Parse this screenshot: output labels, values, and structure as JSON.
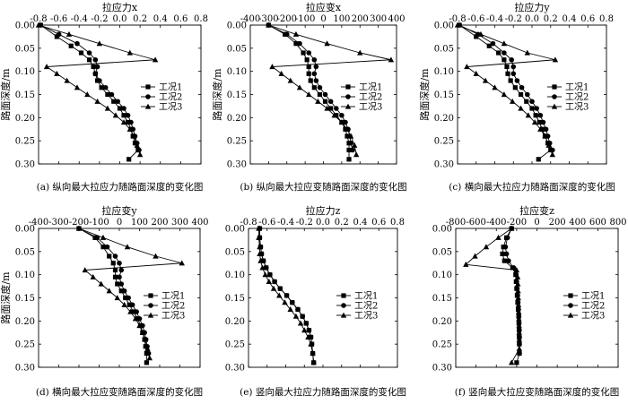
{
  "legend_labels": [
    "工况1",
    "工况2",
    "工况3"
  ],
  "chart_data": [
    {
      "type": "line",
      "title": "拉应力x",
      "xlabel": "拉应力x",
      "ylabel": "路面深度/m",
      "caption": "(a) 纵向最大拉应力随路面深度的变化图",
      "xlim": [
        -0.8,
        0.8
      ],
      "ylim": [
        0,
        0.3
      ],
      "xticks": [
        "-0.8",
        "-0.6",
        "-0.4",
        "-0.2",
        "0.0",
        "0.2",
        "0.4",
        "0.6",
        "0.8"
      ],
      "xtick_values": [
        -0.8,
        -0.6,
        -0.4,
        -0.2,
        0.0,
        0.2,
        0.4,
        0.6,
        0.8
      ],
      "yticks": [
        "0.00",
        "0.05",
        "0.10",
        "0.15",
        "0.20",
        "0.25",
        "0.30"
      ],
      "ytick_values": [
        0,
        0.05,
        0.1,
        0.15,
        0.2,
        0.25,
        0.3
      ],
      "legend_position": "right-middle",
      "series": [
        {
          "name": "工况1",
          "marker": "square",
          "x": [
            -0.78,
            -0.62,
            -0.48,
            -0.38,
            -0.3,
            -0.26,
            -0.24,
            -0.22,
            -0.18,
            -0.12,
            -0.06,
            0.0,
            0.04,
            0.08,
            0.11,
            0.13,
            0.15,
            0.18,
            0.09
          ],
          "y": [
            0.0,
            0.025,
            0.045,
            0.06,
            0.075,
            0.09,
            0.105,
            0.12,
            0.135,
            0.15,
            0.165,
            0.18,
            0.195,
            0.21,
            0.225,
            0.24,
            0.255,
            0.27,
            0.29
          ]
        },
        {
          "name": "工况2",
          "marker": "circle",
          "x": [
            -0.78,
            -0.6,
            -0.42,
            -0.3,
            -0.24,
            -0.22,
            -0.24,
            -0.2,
            -0.14,
            -0.08,
            -0.02,
            0.04,
            0.08,
            0.11,
            0.13,
            0.15,
            0.17,
            0.19
          ],
          "y": [
            0.0,
            0.02,
            0.04,
            0.06,
            0.075,
            0.09,
            0.105,
            0.12,
            0.135,
            0.15,
            0.165,
            0.18,
            0.195,
            0.21,
            0.225,
            0.24,
            0.255,
            0.27
          ]
        },
        {
          "name": "工况3",
          "marker": "triangle",
          "x": [
            -0.8,
            -0.5,
            -0.2,
            0.1,
            0.35,
            -0.72,
            -0.62,
            -0.52,
            -0.42,
            -0.32,
            -0.22,
            -0.12,
            -0.04,
            0.04,
            0.1,
            0.14,
            0.17,
            0.2
          ],
          "y": [
            0.0,
            0.02,
            0.04,
            0.06,
            0.075,
            0.09,
            0.105,
            0.12,
            0.135,
            0.15,
            0.165,
            0.18,
            0.195,
            0.21,
            0.225,
            0.24,
            0.26,
            0.28
          ]
        }
      ]
    },
    {
      "type": "line",
      "title": "拉应变x",
      "xlabel": "拉应变x",
      "ylabel": "路面深度/m",
      "caption": "(b) 纵向最大拉应变随路面深度的变化图",
      "xlim": [
        -400,
        400
      ],
      "ylim": [
        0,
        0.3
      ],
      "xticks": [
        "-400",
        "-300",
        "-200",
        "-100",
        "0",
        "100",
        "200",
        "300",
        "400"
      ],
      "xtick_values": [
        -400,
        -300,
        -200,
        -100,
        0,
        100,
        200,
        300,
        400
      ],
      "yticks": [
        "0.00",
        "0.05",
        "0.10",
        "0.15",
        "0.20",
        "0.25",
        "0.30"
      ],
      "ytick_values": [
        0,
        0.05,
        0.1,
        0.15,
        0.2,
        0.25,
        0.3
      ],
      "legend_position": "right-middle",
      "series": [
        {
          "name": "工况1",
          "marker": "square",
          "x": [
            -300,
            -210,
            -150,
            -110,
            -90,
            -80,
            -80,
            -70,
            -50,
            -20,
            10,
            40,
            70,
            100,
            120,
            130,
            140,
            140,
            140
          ],
          "y": [
            0.0,
            0.02,
            0.04,
            0.06,
            0.075,
            0.09,
            0.105,
            0.12,
            0.135,
            0.15,
            0.165,
            0.18,
            0.195,
            0.21,
            0.225,
            0.24,
            0.255,
            0.27,
            0.29
          ]
        },
        {
          "name": "工况2",
          "marker": "circle",
          "x": [
            -300,
            -200,
            -130,
            -80,
            -50,
            -40,
            -50,
            -40,
            -20,
            10,
            40,
            70,
            100,
            120,
            135,
            145,
            150,
            160
          ],
          "y": [
            0.0,
            0.02,
            0.04,
            0.06,
            0.075,
            0.09,
            0.105,
            0.12,
            0.135,
            0.15,
            0.165,
            0.18,
            0.195,
            0.21,
            0.225,
            0.24,
            0.255,
            0.27
          ]
        },
        {
          "name": "工况3",
          "marker": "triangle",
          "x": [
            -300,
            -150,
            20,
            200,
            370,
            -280,
            -230,
            -180,
            -130,
            -80,
            -30,
            20,
            60,
            100,
            130,
            150,
            170,
            180
          ],
          "y": [
            0.0,
            0.02,
            0.04,
            0.06,
            0.075,
            0.09,
            0.105,
            0.12,
            0.135,
            0.15,
            0.165,
            0.18,
            0.195,
            0.21,
            0.225,
            0.24,
            0.26,
            0.28
          ]
        }
      ]
    },
    {
      "type": "line",
      "title": "拉应力y",
      "xlabel": "拉应力y",
      "ylabel": "路面深度/m",
      "caption": "(c) 横向最大拉应力随路面深度的变化图",
      "xlim": [
        -0.8,
        0.8
      ],
      "ylim": [
        0,
        0.3
      ],
      "xticks": [
        "-0.8",
        "-0.6",
        "-0.4",
        "-0.2",
        "0.0",
        "0.2",
        "0.4",
        "0.6",
        "0.8"
      ],
      "xtick_values": [
        -0.8,
        -0.6,
        -0.4,
        -0.2,
        0.0,
        0.2,
        0.4,
        0.6,
        0.8
      ],
      "yticks": [
        "0.00",
        "0.05",
        "0.10",
        "0.15",
        "0.20",
        "0.25",
        "0.30"
      ],
      "ytick_values": [
        0,
        0.05,
        0.1,
        0.15,
        0.2,
        0.25,
        0.3
      ],
      "legend_position": "right-middle",
      "series": [
        {
          "name": "工况1",
          "marker": "square",
          "x": [
            -0.78,
            -0.6,
            -0.46,
            -0.36,
            -0.3,
            -0.27,
            -0.26,
            -0.23,
            -0.18,
            -0.12,
            -0.06,
            0.0,
            0.04,
            0.08,
            0.11,
            0.14,
            0.17,
            0.2,
            0.07
          ],
          "y": [
            0.0,
            0.025,
            0.045,
            0.06,
            0.075,
            0.09,
            0.105,
            0.12,
            0.135,
            0.15,
            0.165,
            0.18,
            0.195,
            0.21,
            0.225,
            0.24,
            0.255,
            0.27,
            0.29
          ]
        },
        {
          "name": "工况2",
          "marker": "circle",
          "x": [
            -0.78,
            -0.58,
            -0.42,
            -0.3,
            -0.22,
            -0.2,
            -0.2,
            -0.16,
            -0.11,
            -0.05,
            0.0,
            0.05,
            0.09,
            0.12,
            0.15,
            0.17,
            0.19,
            0.22
          ],
          "y": [
            0.0,
            0.02,
            0.04,
            0.06,
            0.075,
            0.09,
            0.105,
            0.12,
            0.135,
            0.15,
            0.165,
            0.18,
            0.195,
            0.21,
            0.225,
            0.24,
            0.255,
            0.27
          ]
        },
        {
          "name": "工况3",
          "marker": "triangle",
          "x": [
            -0.8,
            -0.55,
            -0.3,
            -0.05,
            0.25,
            -0.7,
            -0.6,
            -0.5,
            -0.4,
            -0.3,
            -0.21,
            -0.12,
            -0.04,
            0.03,
            0.09,
            0.14,
            0.18,
            0.22
          ],
          "y": [
            0.0,
            0.02,
            0.04,
            0.06,
            0.075,
            0.09,
            0.105,
            0.12,
            0.135,
            0.15,
            0.165,
            0.18,
            0.195,
            0.21,
            0.225,
            0.24,
            0.26,
            0.28
          ]
        }
      ]
    },
    {
      "type": "line",
      "title": "拉应变y",
      "xlabel": "拉应变y",
      "ylabel": "路面深度/m",
      "caption": "(d) 横向最大拉应变随路面深度的变化图",
      "xlim": [
        -400,
        400
      ],
      "ylim": [
        0,
        0.3
      ],
      "xticks": [
        "-400",
        "-300",
        "-200",
        "-100",
        "0",
        "100",
        "200",
        "300",
        "400"
      ],
      "xtick_values": [
        -400,
        -300,
        -200,
        -100,
        0,
        100,
        200,
        300,
        400
      ],
      "yticks": [
        "0.00",
        "0.05",
        "0.10",
        "0.15",
        "0.20",
        "0.25",
        "0.30"
      ],
      "ytick_values": [
        0,
        0.05,
        0.1,
        0.15,
        0.2,
        0.25,
        0.3
      ],
      "legend_position": "right-middle",
      "series": [
        {
          "name": "工况1",
          "marker": "square",
          "x": [
            -200,
            -120,
            -80,
            -50,
            -30,
            -20,
            -20,
            -10,
            10,
            30,
            50,
            70,
            90,
            105,
            115,
            125,
            130,
            135,
            135
          ],
          "y": [
            0.0,
            0.02,
            0.04,
            0.06,
            0.075,
            0.09,
            0.105,
            0.12,
            0.135,
            0.15,
            0.165,
            0.18,
            0.195,
            0.21,
            0.225,
            0.24,
            0.255,
            0.27,
            0.29
          ]
        },
        {
          "name": "工况2",
          "marker": "circle",
          "x": [
            -200,
            -110,
            -60,
            -20,
            0,
            10,
            0,
            10,
            25,
            45,
            65,
            85,
            100,
            115,
            125,
            132,
            138,
            145
          ],
          "y": [
            0.0,
            0.02,
            0.04,
            0.06,
            0.075,
            0.09,
            0.105,
            0.12,
            0.135,
            0.15,
            0.165,
            0.18,
            0.195,
            0.21,
            0.225,
            0.24,
            0.255,
            0.27
          ]
        },
        {
          "name": "工况3",
          "marker": "triangle",
          "x": [
            -200,
            -80,
            40,
            180,
            310,
            -170,
            -130,
            -90,
            -50,
            -10,
            25,
            55,
            80,
            100,
            115,
            128,
            140,
            150
          ],
          "y": [
            0.0,
            0.02,
            0.04,
            0.06,
            0.075,
            0.09,
            0.105,
            0.12,
            0.135,
            0.15,
            0.165,
            0.18,
            0.195,
            0.21,
            0.225,
            0.24,
            0.26,
            0.28
          ]
        }
      ]
    },
    {
      "type": "line",
      "title": "拉应力z",
      "xlabel": "拉应力z",
      "ylabel": "",
      "caption": "(e) 竖向最大拉应力随路面深度的变化图",
      "xlim": [
        -0.8,
        0.8
      ],
      "ylim": [
        0,
        0.3
      ],
      "xticks": [
        "-0.8",
        "-0.6",
        "-0.4",
        "-0.2",
        "0.0",
        "0.2",
        "0.4",
        "0.6",
        "0.8"
      ],
      "xtick_values": [
        -0.8,
        -0.6,
        -0.4,
        -0.2,
        0.0,
        0.2,
        0.4,
        0.6,
        0.8
      ],
      "yticks": [
        "0.00",
        "0.05",
        "0.10",
        "0.15",
        "0.20",
        "0.25",
        "0.30"
      ],
      "ytick_values": [
        0,
        0.05,
        0.1,
        0.15,
        0.2,
        0.25,
        0.3
      ],
      "legend_position": "right-middle",
      "series": [
        {
          "name": "工况1",
          "marker": "square",
          "x": [
            -0.68,
            -0.68,
            -0.67,
            -0.66,
            -0.64,
            -0.61,
            -0.57,
            -0.52,
            -0.46,
            -0.39,
            -0.33,
            -0.27,
            -0.22,
            -0.18,
            -0.15,
            -0.13,
            -0.12,
            -0.11,
            -0.1
          ],
          "y": [
            0.0,
            0.02,
            0.04,
            0.055,
            0.07,
            0.085,
            0.1,
            0.115,
            0.13,
            0.145,
            0.16,
            0.175,
            0.19,
            0.205,
            0.22,
            0.235,
            0.25,
            0.27,
            0.29
          ]
        },
        {
          "name": "工况2",
          "marker": "circle",
          "x": [
            -0.68,
            -0.68,
            -0.67,
            -0.66,
            -0.64,
            -0.61,
            -0.57,
            -0.52,
            -0.46,
            -0.39,
            -0.33,
            -0.27,
            -0.22,
            -0.18,
            -0.15,
            -0.13,
            -0.12,
            -0.11,
            -0.1
          ],
          "y": [
            0.0,
            0.02,
            0.04,
            0.055,
            0.07,
            0.085,
            0.1,
            0.115,
            0.13,
            0.145,
            0.16,
            0.175,
            0.19,
            0.205,
            0.22,
            0.235,
            0.25,
            0.27,
            0.29
          ]
        },
        {
          "name": "工况3",
          "marker": "triangle",
          "x": [
            -0.69,
            -0.69,
            -0.68,
            -0.68,
            -0.67,
            -0.65,
            -0.62,
            -0.58,
            -0.53,
            -0.47,
            -0.41,
            -0.35,
            -0.29,
            -0.24,
            -0.2,
            -0.16,
            -0.13,
            -0.11,
            -0.1
          ],
          "y": [
            0.0,
            0.02,
            0.04,
            0.055,
            0.07,
            0.085,
            0.1,
            0.115,
            0.13,
            0.145,
            0.16,
            0.175,
            0.19,
            0.205,
            0.22,
            0.235,
            0.25,
            0.27,
            0.29
          ]
        }
      ]
    },
    {
      "type": "line",
      "title": "拉应变z",
      "xlabel": "拉应变z",
      "ylabel": "",
      "caption": "(f) 竖向最大拉应变随路面深度的变化图",
      "xlim": [
        -800,
        800
      ],
      "ylim": [
        0,
        0.3
      ],
      "xticks": [
        "-800",
        "-600",
        "-400",
        "-200",
        "0",
        "200",
        "400",
        "600",
        "800"
      ],
      "xtick_values": [
        -800,
        -600,
        -400,
        -200,
        0,
        200,
        400,
        600,
        800
      ],
      "yticks": [
        "0.00",
        "0.05",
        "0.10",
        "0.15",
        "0.20",
        "0.25",
        "0.30"
      ],
      "ytick_values": [
        0,
        0.05,
        0.1,
        0.15,
        0.2,
        0.25,
        0.3
      ],
      "legend_position": "right-middle",
      "series": [
        {
          "name": "工况1",
          "marker": "square",
          "x": [
            -250,
            -300,
            -330,
            -340,
            -320,
            -240,
            -210,
            -205,
            -200,
            -195,
            -190,
            -185,
            -180,
            -178,
            -176,
            -175,
            -174,
            -173,
            -200
          ],
          "y": [
            0.0,
            0.02,
            0.04,
            0.055,
            0.07,
            0.085,
            0.1,
            0.115,
            0.13,
            0.145,
            0.16,
            0.175,
            0.19,
            0.205,
            0.22,
            0.235,
            0.25,
            0.27,
            0.29
          ]
        },
        {
          "name": "工况2",
          "marker": "circle",
          "x": [
            -250,
            -290,
            -310,
            -300,
            -280,
            -230,
            -205,
            -200,
            -195,
            -190,
            -186,
            -182,
            -178,
            -176,
            -174,
            -172,
            -172,
            -172
          ],
          "y": [
            0.0,
            0.02,
            0.04,
            0.055,
            0.07,
            0.085,
            0.1,
            0.115,
            0.13,
            0.145,
            0.16,
            0.175,
            0.19,
            0.205,
            0.22,
            0.235,
            0.25,
            0.27
          ]
        },
        {
          "name": "工况3",
          "marker": "triangle",
          "x": [
            -250,
            -380,
            -500,
            -610,
            -700,
            -200,
            -190,
            -188,
            -186,
            -184,
            -182,
            -180,
            -178,
            -176,
            -175,
            -174,
            -174,
            -250
          ],
          "y": [
            0.0,
            0.02,
            0.04,
            0.06,
            0.078,
            0.09,
            0.105,
            0.12,
            0.135,
            0.15,
            0.165,
            0.18,
            0.195,
            0.21,
            0.225,
            0.24,
            0.26,
            0.29
          ]
        }
      ]
    }
  ]
}
